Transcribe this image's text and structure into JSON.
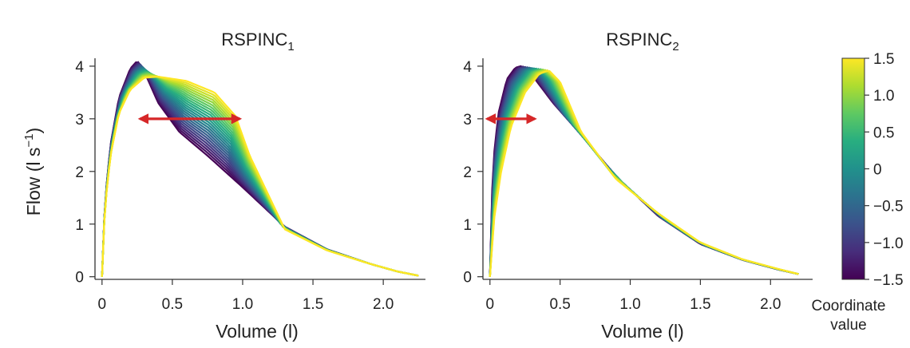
{
  "chart_data": [
    {
      "type": "line",
      "title_main": "RSPINC",
      "title_sub": "1",
      "xlabel": "Volume (l)",
      "ylabel_pre": "Flow (l s",
      "ylabel_sup": "−1",
      "ylabel_post": ")",
      "xlim": [
        -0.05,
        2.3
      ],
      "ylim": [
        -0.05,
        4.15
      ],
      "xticks": [
        0,
        0.5,
        1.0,
        1.5,
        2.0
      ],
      "xtick_labels": [
        "0",
        "0.5",
        "1.0",
        "1.5",
        "2.0"
      ],
      "yticks": [
        0,
        1,
        2,
        3,
        4
      ],
      "ytick_labels": [
        "0",
        "1",
        "2",
        "3",
        "4"
      ],
      "series_count": 25,
      "series_coordinate_range": [
        -1.5,
        1.5
      ],
      "profile_extremes": [
        {
          "coordinate": -1.5,
          "peak_volume": 0.25,
          "peak_flow": 4.1,
          "x": [
            0,
            0.02,
            0.06,
            0.12,
            0.2,
            0.25,
            0.3,
            0.4,
            0.55,
            0.75,
            1.0,
            1.3,
            1.6,
            1.9,
            2.1,
            2.25
          ],
          "y": [
            0,
            1.4,
            2.5,
            3.4,
            3.95,
            4.1,
            3.9,
            3.3,
            2.75,
            2.3,
            1.7,
            0.95,
            0.52,
            0.25,
            0.1,
            0.02
          ]
        },
        {
          "coordinate": 1.5,
          "peak_volume": 0.35,
          "peak_flow": 3.8,
          "x": [
            0,
            0.02,
            0.06,
            0.12,
            0.2,
            0.3,
            0.4,
            0.6,
            0.8,
            0.95,
            1.05,
            1.3,
            1.6,
            1.9,
            2.1,
            2.25
          ],
          "y": [
            0,
            1.3,
            2.3,
            3.1,
            3.55,
            3.78,
            3.8,
            3.72,
            3.5,
            3.05,
            2.3,
            0.9,
            0.5,
            0.25,
            0.1,
            0.02
          ]
        }
      ],
      "annotation": {
        "type": "double-arrow",
        "x_from": 0.27,
        "x_to": 0.98,
        "y": 3.0,
        "color": "#d62728"
      }
    },
    {
      "type": "line",
      "title_main": "RSPINC",
      "title_sub": "2",
      "xlabel": "Volume (l)",
      "xlim": [
        -0.05,
        2.3
      ],
      "ylim": [
        -0.05,
        4.15
      ],
      "xticks": [
        0,
        0.5,
        1.0,
        1.5,
        2.0
      ],
      "xtick_labels": [
        "0",
        "0.5",
        "1.0",
        "1.5",
        "2.0"
      ],
      "yticks": [
        0,
        1,
        2,
        3,
        4
      ],
      "ytick_labels": [
        "0",
        "1",
        "2",
        "3",
        "4"
      ],
      "series_count": 25,
      "series_coordinate_range": [
        -1.5,
        1.5
      ],
      "profile_extremes": [
        {
          "coordinate": -1.5,
          "peak_volume": 0.22,
          "peak_flow": 4.0,
          "x": [
            0,
            0.02,
            0.06,
            0.12,
            0.18,
            0.22,
            0.28,
            0.45,
            0.65,
            0.9,
            1.2,
            1.5,
            1.8,
            2.05,
            2.2
          ],
          "y": [
            0,
            2.1,
            3.1,
            3.75,
            3.97,
            4.0,
            3.9,
            3.3,
            2.7,
            1.9,
            1.15,
            0.62,
            0.32,
            0.14,
            0.05
          ]
        },
        {
          "coordinate": 1.5,
          "peak_volume": 0.42,
          "peak_flow": 3.92,
          "x": [
            0,
            0.03,
            0.08,
            0.15,
            0.25,
            0.35,
            0.42,
            0.5,
            0.65,
            0.9,
            1.2,
            1.5,
            1.8,
            2.05,
            2.2
          ],
          "y": [
            0,
            1.1,
            2.0,
            2.85,
            3.5,
            3.85,
            3.92,
            3.7,
            2.75,
            1.85,
            1.2,
            0.65,
            0.33,
            0.15,
            0.05
          ]
        }
      ],
      "annotation": {
        "type": "double-arrow",
        "x_from": -0.02,
        "x_to": 0.32,
        "y": 3.0,
        "color": "#d62728"
      }
    }
  ],
  "colorbar": {
    "colors": [
      "#440154",
      "#472d7b",
      "#3b528b",
      "#2c728e",
      "#21918c",
      "#28ae80",
      "#5ec962",
      "#addc30",
      "#fde725"
    ],
    "range": [
      -1.5,
      1.5
    ],
    "ticks": [
      1.5,
      1.0,
      0.5,
      0,
      -0.5,
      -1.0,
      -1.5
    ],
    "tick_labels": [
      "1.5",
      "1.0",
      "0.5",
      "0",
      "−0.5",
      "−1.0",
      "−1.5"
    ],
    "label_line1": "Coordinate",
    "label_line2": "value"
  }
}
